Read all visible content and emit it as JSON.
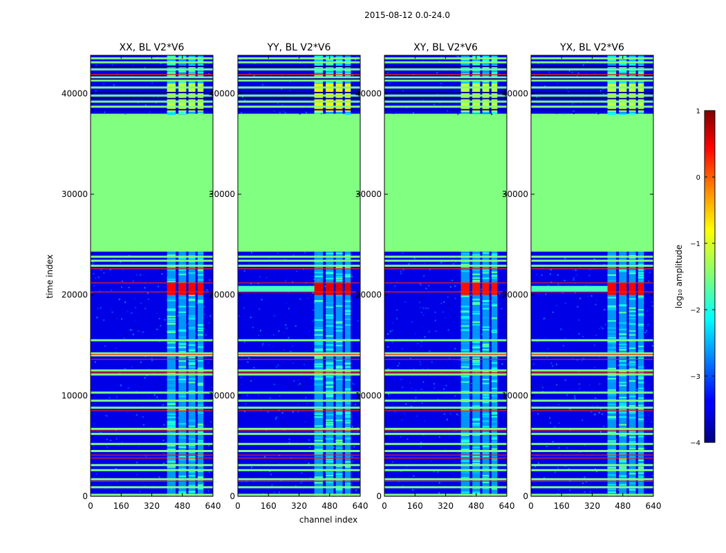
{
  "chart_data": {
    "type": "heatmap",
    "suptitle": "2015-08-12 0.0-24.0",
    "xlabel": "channel index",
    "ylabel": "time index",
    "xlim": [
      0,
      640
    ],
    "ylim": [
      0,
      43800
    ],
    "x_ticks": [
      0,
      160,
      320,
      480,
      640
    ],
    "y_ticks": [
      0,
      10000,
      20000,
      30000,
      40000
    ],
    "colormap": "jet",
    "panels": [
      {
        "title": "XX, BL V2*V6",
        "channel_band_low": [
          0,
          400
        ],
        "channel_band_high": [
          400,
          600
        ],
        "peak_log10_amp": 0.4
      },
      {
        "title": "YY, BL V2*V6",
        "channel_band_low": [
          0,
          400
        ],
        "channel_band_high": [
          400,
          600
        ],
        "peak_log10_amp": 0.5
      },
      {
        "title": "XY, BL V2*V6",
        "channel_band_low": [
          0,
          400
        ],
        "channel_band_high": [
          400,
          600
        ],
        "peak_log10_amp": 0.3
      },
      {
        "title": "YX, BL V2*V6",
        "channel_band_low": [
          0,
          400
        ],
        "channel_band_high": [
          400,
          600
        ],
        "peak_log10_amp": 0.4
      }
    ],
    "time_segments": [
      {
        "from": 0,
        "to": 24300,
        "log10_amp": -3.5
      },
      {
        "from": 24300,
        "to": 38000,
        "log10_amp": -1.5
      },
      {
        "from": 38000,
        "to": 43800,
        "log10_amp": -3.5
      }
    ],
    "flagged_rows_log10_amp": -1.5,
    "colorbar": {
      "label": "log₁₀ amplitude",
      "range": [
        -4,
        1
      ],
      "ticks": [
        1,
        0,
        -1,
        -2,
        -3,
        -4
      ],
      "tick_labels": [
        "1",
        "0",
        "−1",
        "−2",
        "−3",
        "−4"
      ]
    }
  }
}
